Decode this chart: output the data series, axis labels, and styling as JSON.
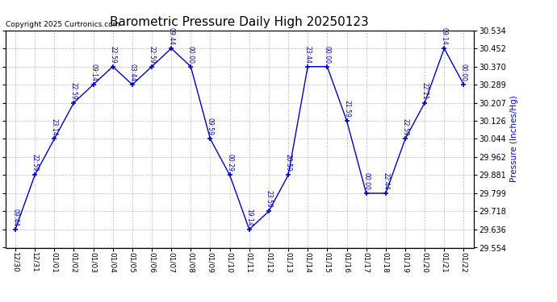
{
  "title": "Barometric Pressure Daily High 20250123",
  "copyright": "Copyright 2025 Curtronics.com",
  "ylabel": "Pressure (Inches/Hg)",
  "background_color": "#ffffff",
  "line_color": "#0000cc",
  "grid_color": "#aaaaaa",
  "title_color": "#000000",
  "ylabel_color": "#0000ff",
  "copyright_color": "#000000",
  "dates": [
    "12/30",
    "12/31",
    "01/01",
    "01/02",
    "01/03",
    "01/04",
    "01/05",
    "01/06",
    "01/07",
    "01/08",
    "01/09",
    "01/10",
    "01/11",
    "01/12",
    "01/13",
    "01/14",
    "01/15",
    "01/16",
    "01/17",
    "01/18",
    "01/19",
    "01/20",
    "01/21",
    "01/22"
  ],
  "values": [
    29.636,
    29.881,
    30.044,
    30.207,
    30.289,
    30.37,
    30.289,
    30.37,
    30.452,
    30.37,
    30.044,
    29.881,
    29.636,
    29.718,
    29.881,
    30.37,
    30.37,
    30.126,
    29.799,
    29.799,
    30.044,
    30.207,
    30.452,
    30.289
  ],
  "times": [
    "09:44",
    "22:59",
    "23:14",
    "22:59",
    "09:14",
    "22:59",
    "03:44",
    "22:59",
    "09:44",
    "00:00",
    "09:59",
    "00:29",
    "19:14",
    "23:59",
    "20:59",
    "23:44",
    "00:00",
    "21:59",
    "00:00",
    "22:44",
    "22:59",
    "22:21",
    "09:14",
    "00:00"
  ],
  "ylim_min": 29.554,
  "ylim_max": 30.534,
  "ytick_values": [
    29.554,
    29.636,
    29.718,
    29.799,
    29.881,
    29.962,
    30.044,
    30.126,
    30.207,
    30.289,
    30.37,
    30.452,
    30.534
  ]
}
